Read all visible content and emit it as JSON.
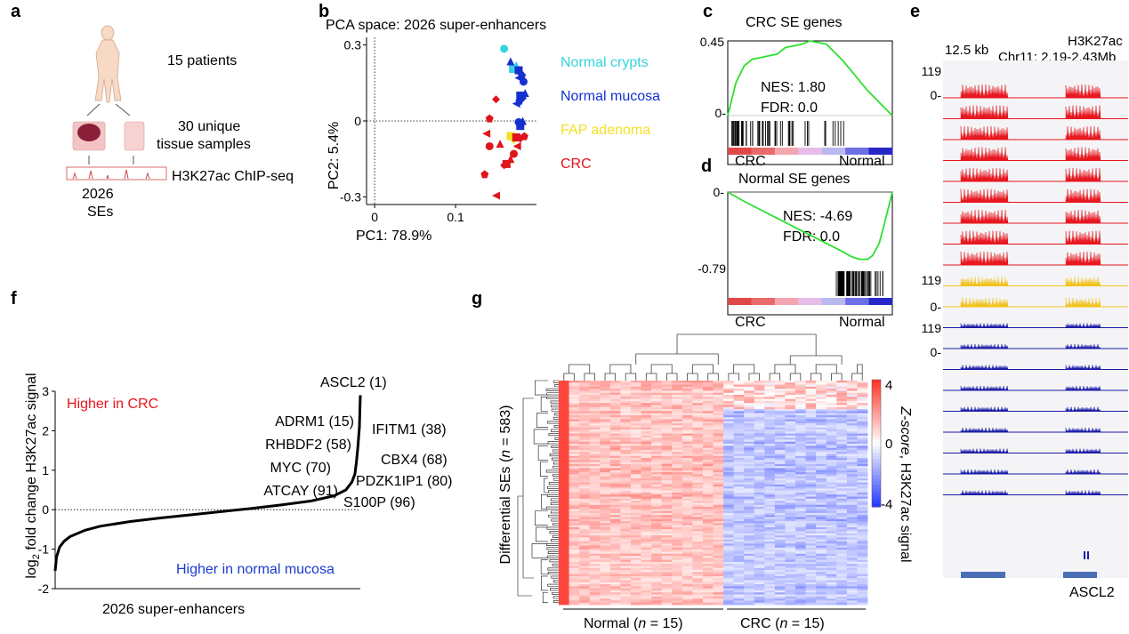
{
  "panel_labels": {
    "a": "a",
    "b": "b",
    "c": "c",
    "d": "d",
    "e": "e",
    "f": "f",
    "g": "g"
  },
  "panel_a": {
    "patients": "15 patients",
    "samples_line1": "30 unique",
    "samples_line2": "tissue samples",
    "chip": "H3K27ac ChIP-seq",
    "ses_line1": "2026",
    "ses_line2": "SEs"
  },
  "panel_c": {
    "title": "CRC SE genes",
    "nes": "NES: 1.80",
    "fdr": "FDR: 0.0",
    "x_left": "CRC",
    "x_right": "Normal"
  },
  "panel_d": {
    "title": "Normal SE genes",
    "nes": "NES: -4.69",
    "fdr": "FDR: 0.0",
    "x_left": "CRC",
    "x_right": "Normal"
  },
  "panel_e": {
    "scale": "12.5 kb",
    "mark": "H3K27ac",
    "region": "Chr11: 2.19-2.43Mb",
    "gene": "ASCL2",
    "colors": {
      "crc": "#e8141c",
      "fap": "#f2c21b",
      "normal": "#1a1aa8"
    }
  },
  "panel_g": {
    "ylabel_prefix": "Differential SEs (",
    "ylabel_n": "n",
    "ylabel_suffix": " = 583)",
    "cbar_label_prefix": "Z-score",
    "cbar_label_suffix": ", H3K27ac signal",
    "cbar_max": "4",
    "cbar_zero": "0",
    "cbar_min": "-4",
    "group_normal": "Normal (",
    "group_crc": "CRC (",
    "n_sym": "n",
    "n_val": " = 15)"
  },
  "chart_data": [
    {
      "type": "scatter",
      "panel": "b",
      "title": "PCA space: 2026 super-enhancers",
      "xlabel": "PC1: 78.9%",
      "ylabel": "PC2: 5.4%",
      "xlim": [
        -0.01,
        0.2
      ],
      "ylim": [
        -0.33,
        0.33
      ],
      "xticks": [
        "0",
        "0.1"
      ],
      "yticks": [
        "0.3",
        "0",
        "-0.3"
      ],
      "legend": [
        "Normal crypts",
        "Normal mucosa",
        "FAP adenoma",
        "CRC"
      ],
      "colors": {
        "Normal crypts": "#35d3dd",
        "Normal mucosa": "#1530d0",
        "FAP adenoma": "#f5e021",
        "CRC": "#e0141c"
      },
      "series": [
        {
          "name": "Normal crypts",
          "points": [
            [
              0.16,
              0.285
            ],
            [
              0.175,
              0.22
            ],
            [
              0.171,
              0.205
            ]
          ]
        },
        {
          "name": "Normal mucosa",
          "points": [
            [
              0.168,
              0.235
            ],
            [
              0.178,
              0.2
            ],
            [
              0.18,
              0.19
            ],
            [
              0.182,
              0.18
            ],
            [
              0.178,
              0.17
            ],
            [
              0.184,
              0.155
            ],
            [
              0.186,
              0.11
            ],
            [
              0.18,
              0.1
            ],
            [
              0.183,
              0.09
            ],
            [
              0.179,
              0.08
            ],
            [
              0.175,
              0.068
            ],
            [
              0.178,
              -0.005
            ],
            [
              0.183,
              0.0
            ],
            [
              0.18,
              -0.02
            ]
          ]
        },
        {
          "name": "FAP adenoma",
          "points": [
            [
              0.168,
              -0.06
            ],
            [
              0.172,
              -0.075
            ]
          ]
        },
        {
          "name": "CRC",
          "points": [
            [
              0.15,
              0.085
            ],
            [
              0.142,
              0.01
            ],
            [
              0.138,
              -0.05
            ],
            [
              0.142,
              -0.1
            ],
            [
              0.155,
              -0.09
            ],
            [
              0.175,
              -0.065
            ],
            [
              0.18,
              -0.07
            ],
            [
              0.185,
              -0.06
            ],
            [
              0.176,
              -0.1
            ],
            [
              0.172,
              -0.13
            ],
            [
              0.168,
              -0.15
            ],
            [
              0.163,
              -0.17
            ],
            [
              0.16,
              -0.175
            ],
            [
              0.136,
              -0.21
            ],
            [
              0.15,
              -0.295
            ]
          ]
        }
      ]
    },
    {
      "type": "line",
      "panel": "c",
      "title": "CRC SE genes",
      "yticks": [
        "0.45",
        "0-"
      ],
      "ylim": [
        0,
        0.45
      ],
      "x": [
        0,
        0.05,
        0.1,
        0.15,
        0.2,
        0.25,
        0.3,
        0.35,
        0.4,
        0.45,
        0.5,
        0.55,
        0.6,
        0.65,
        0.7,
        0.75,
        0.8,
        0.85,
        0.9,
        0.95,
        1
      ],
      "y": [
        0,
        0.2,
        0.3,
        0.34,
        0.35,
        0.36,
        0.37,
        0.41,
        0.42,
        0.43,
        0.45,
        0.44,
        0.43,
        0.38,
        0.33,
        0.27,
        0.21,
        0.15,
        0.1,
        0.05,
        0
      ]
    },
    {
      "type": "line",
      "panel": "d",
      "title": "Normal SE genes",
      "yticks": [
        "0-",
        "-0.79"
      ],
      "ylim": [
        -0.79,
        0
      ],
      "x": [
        0,
        0.1,
        0.2,
        0.3,
        0.4,
        0.5,
        0.6,
        0.7,
        0.75,
        0.8,
        0.85,
        0.88,
        0.92,
        0.95,
        1
      ],
      "y": [
        0,
        -0.1,
        -0.19,
        -0.28,
        -0.37,
        -0.46,
        -0.55,
        -0.64,
        -0.69,
        -0.72,
        -0.72,
        -0.68,
        -0.55,
        -0.35,
        0
      ]
    },
    {
      "type": "line",
      "panel": "f",
      "xlabel": "2026 super-enhancers",
      "ylabel_pre": "log",
      "ylabel_sub": "2",
      "ylabel_post": " fold change H3K27ac signal",
      "ylim": [
        -2,
        3
      ],
      "yticks": [
        "3",
        "2",
        "1",
        "0",
        "-1",
        "-2"
      ],
      "ytick_values": [
        3,
        2,
        1,
        0,
        -1,
        -2
      ],
      "labels_higher": {
        "crc": "Higher in CRC",
        "normal": "Higher in normal mucosa"
      },
      "annotations": [
        "ASCL2 (1)",
        "ADRM1 (15)",
        "RHBDF2 (58)",
        "MYC (70)",
        "ATCAY (91)",
        "IFITM1 (38)",
        "CBX4 (68)",
        "PDZK1IP1 (80)",
        "S100P (96)"
      ],
      "x": [
        1,
        10,
        30,
        60,
        100,
        200,
        300,
        500,
        700,
        900,
        1100,
        1300,
        1500,
        1700,
        1850,
        1930,
        1970,
        1990,
        2000,
        2010,
        2020,
        2026
      ],
      "y": [
        -1.55,
        -1.2,
        -0.95,
        -0.8,
        -0.68,
        -0.52,
        -0.42,
        -0.3,
        -0.21,
        -0.13,
        -0.05,
        0.03,
        0.12,
        0.22,
        0.35,
        0.5,
        0.7,
        0.9,
        1.2,
        1.6,
        2.1,
        2.9
      ]
    },
    {
      "type": "heatmap",
      "panel": "g",
      "rows": 583,
      "columns": 30,
      "groups": [
        {
          "name": "Normal",
          "n": 15
        },
        {
          "name": "CRC",
          "n": 15
        }
      ],
      "scale": [
        -4,
        4
      ]
    }
  ]
}
